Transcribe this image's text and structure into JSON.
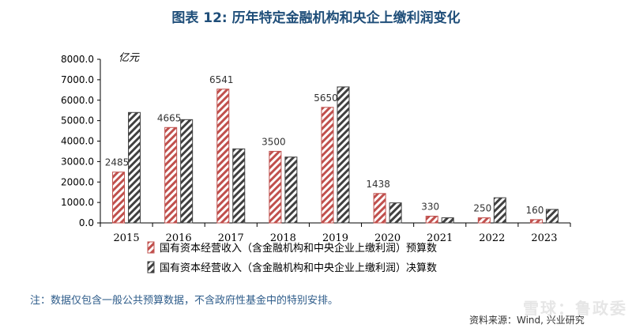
{
  "figure": {
    "title": "图表 12: 历年特定金融机构和央企上缴利润变化",
    "note": "注：数据仅包含一般公共预算数据，不含政府性基金中的特别安排。",
    "source": "资料来源：Wind, 兴业研究",
    "watermark": "雪球：鲁政委"
  },
  "chart_data": {
    "type": "bar",
    "title": "",
    "ylabel": "亿元",
    "xlabel": "",
    "ylim": [
      0,
      8000
    ],
    "yticks": [
      0,
      1000,
      2000,
      3000,
      4000,
      5000,
      6000,
      7000,
      8000
    ],
    "ytick_labels": [
      "0.0",
      "1000.0",
      "2000.0",
      "3000.0",
      "4000.0",
      "5000.0",
      "6000.0",
      "7000.0",
      "8000.0"
    ],
    "grid": false,
    "legend_position": "bottom",
    "categories": [
      "2015",
      "2016",
      "2017",
      "2018",
      "2019",
      "2020",
      "2021",
      "2022",
      "2023"
    ],
    "series": [
      {
        "name": "国有资本经营收入（含金融机构和中央企业上缴利润）预算数",
        "color": "#c0504d",
        "pattern": "diagonal-hatch",
        "values": [
          2485,
          4665,
          6541,
          3500,
          5650,
          1438,
          330,
          250,
          160
        ],
        "labels": [
          "2485",
          "4665",
          "6541",
          "3500",
          "5650",
          "1438",
          "330",
          "250",
          "160"
        ]
      },
      {
        "name": "国有资本经营收入（含金融机构和中央企业上缴利润）决算数",
        "color": "#404040",
        "pattern": "diagonal-hatch",
        "values": [
          5400,
          5050,
          3620,
          3220,
          6650,
          980,
          250,
          1230,
          660
        ]
      }
    ]
  }
}
